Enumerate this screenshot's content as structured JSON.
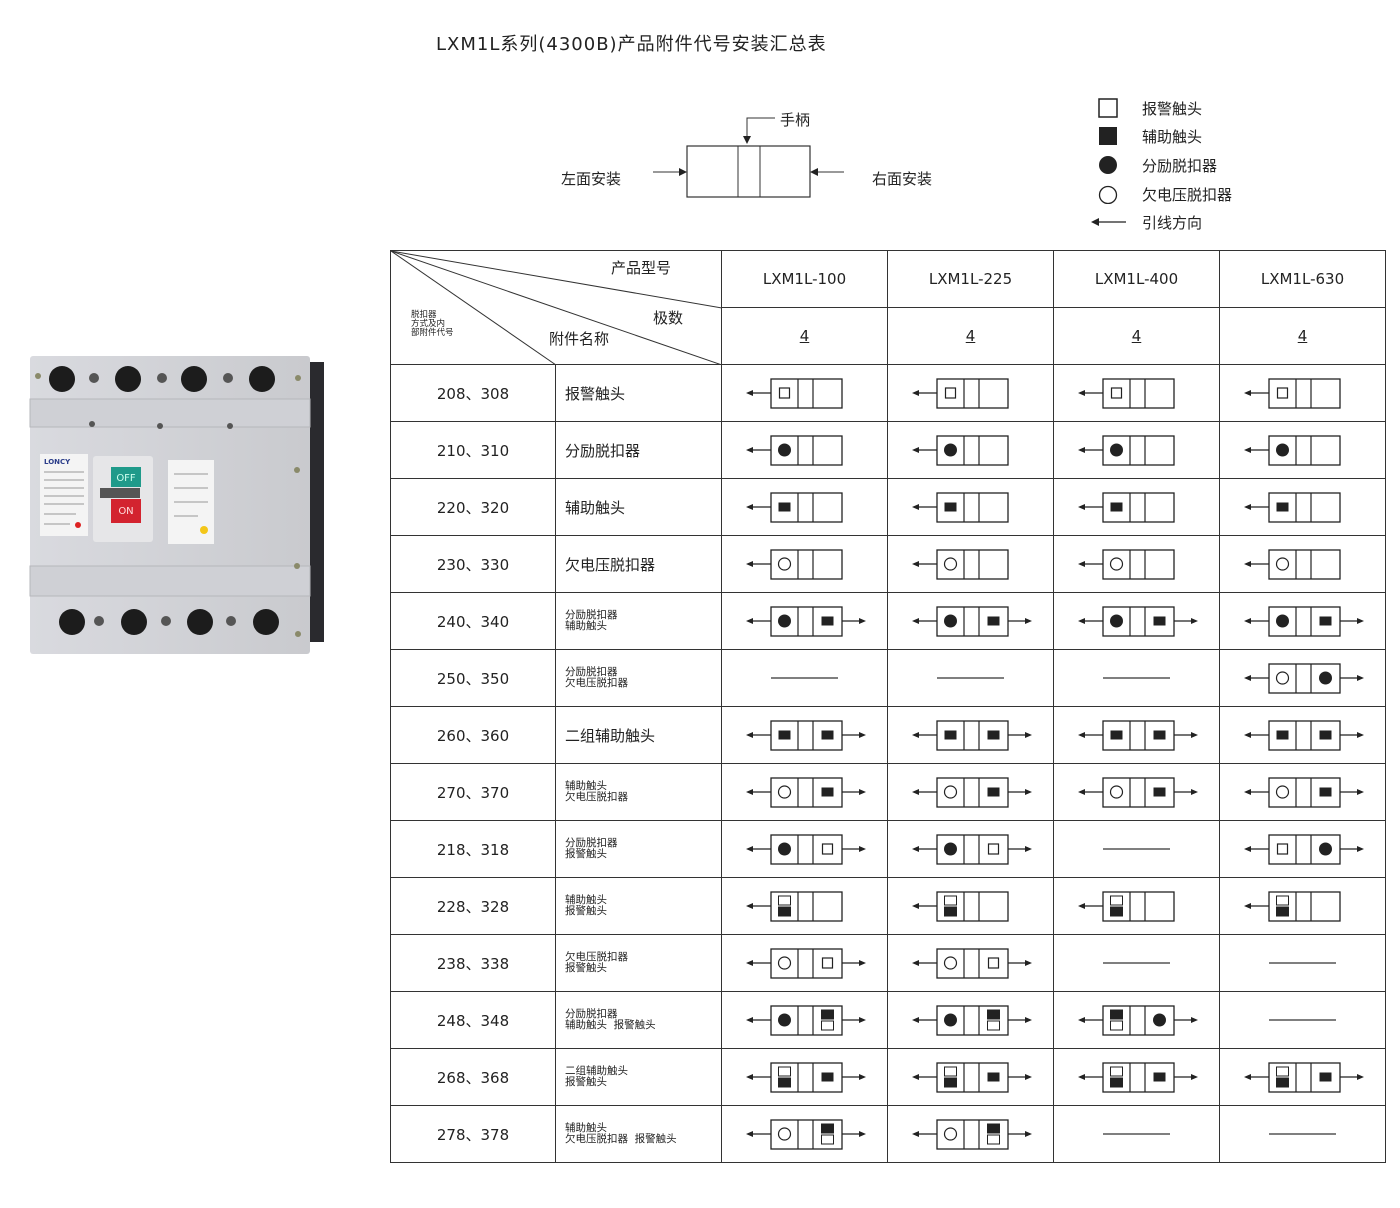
{
  "title": "LXM1L系列(4300B)产品附件代号安装汇总表",
  "install_diagram": {
    "handle": "手柄",
    "left": "左面安装",
    "right": "右面安装"
  },
  "legend": [
    {
      "symbol": "white-square",
      "label": "报警触头"
    },
    {
      "symbol": "black-square",
      "label": "辅助触头"
    },
    {
      "symbol": "black-circle",
      "label": "分励脱扣器"
    },
    {
      "symbol": "white-circle",
      "label": "欠电压脱扣器"
    },
    {
      "symbol": "arrow-left",
      "label": "引线方向"
    }
  ],
  "breaker_photo": {
    "brand": "LONCY",
    "off_label": "OFF",
    "on_label": "ON"
  },
  "table": {
    "header": {
      "product_model": "产品型号",
      "poles": "极数",
      "accessory_name": "附件名称",
      "code_label": "脱扣器\n方式及内\n部附件代号"
    },
    "models": [
      "LXM1L-100",
      "LXM1L-225",
      "LXM1L-400",
      "LXM1L-630"
    ],
    "pole_counts": [
      "4",
      "4",
      "4",
      "4"
    ],
    "rows": [
      {
        "code": "208、308",
        "name": [
          "报警触头"
        ],
        "cells": [
          {
            "l": "wsq",
            "r": ""
          },
          {
            "l": "wsq",
            "r": ""
          },
          {
            "l": "wsq",
            "r": ""
          },
          {
            "l": "wsq",
            "r": ""
          }
        ]
      },
      {
        "code": "210、310",
        "name": [
          "分励脱扣器"
        ],
        "cells": [
          {
            "l": "bc",
            "r": ""
          },
          {
            "l": "bc",
            "r": ""
          },
          {
            "l": "bc",
            "r": ""
          },
          {
            "l": "bc",
            "r": ""
          }
        ]
      },
      {
        "code": "220、320",
        "name": [
          "辅助触头"
        ],
        "cells": [
          {
            "l": "bsq",
            "r": ""
          },
          {
            "l": "bsq",
            "r": ""
          },
          {
            "l": "bsq",
            "r": ""
          },
          {
            "l": "bsq",
            "r": ""
          }
        ]
      },
      {
        "code": "230、330",
        "name": [
          "欠电压脱扣器"
        ],
        "cells": [
          {
            "l": "wc",
            "r": ""
          },
          {
            "l": "wc",
            "r": ""
          },
          {
            "l": "wc",
            "r": ""
          },
          {
            "l": "wc",
            "r": ""
          }
        ]
      },
      {
        "code": "240、340",
        "name": [
          "分励脱扣器",
          "辅助触头"
        ],
        "cells": [
          {
            "l": "bc",
            "r": "bsq"
          },
          {
            "l": "bc",
            "r": "bsq"
          },
          {
            "l": "bc",
            "r": "bsq"
          },
          {
            "l": "bc",
            "r": "bsq"
          }
        ]
      },
      {
        "code": "250、350",
        "name": [
          "分励脱扣器",
          "欠电压脱扣器"
        ],
        "cells": [
          null,
          null,
          null,
          {
            "l": "wc",
            "r": "bc"
          }
        ]
      },
      {
        "code": "260、360",
        "name": [
          "二组辅助触头"
        ],
        "cells": [
          {
            "l": "bsq",
            "r": "bsq"
          },
          {
            "l": "bsq",
            "r": "bsq"
          },
          {
            "l": "bsq",
            "r": "bsq"
          },
          {
            "l": "bsq",
            "r": "bsq"
          }
        ]
      },
      {
        "code": "270、370",
        "name": [
          "辅助触头",
          "欠电压脱扣器"
        ],
        "cells": [
          {
            "l": "wc",
            "r": "bsq"
          },
          {
            "l": "wc",
            "r": "bsq"
          },
          {
            "l": "wc",
            "r": "bsq"
          },
          {
            "l": "wc",
            "r": "bsq"
          }
        ]
      },
      {
        "code": "218、318",
        "name": [
          "分励脱扣器",
          "报警触头"
        ],
        "cells": [
          {
            "l": "bc",
            "r": "wsq"
          },
          {
            "l": "bc",
            "r": "wsq"
          },
          null,
          {
            "l": "wsq",
            "r": "bc"
          }
        ]
      },
      {
        "code": "228、328",
        "name": [
          "辅助触头",
          "报警触头"
        ],
        "cells": [
          {
            "l": "wb",
            "r": ""
          },
          {
            "l": "wb",
            "r": ""
          },
          {
            "l": "wb",
            "r": ""
          },
          {
            "l": "wb",
            "r": ""
          }
        ]
      },
      {
        "code": "238、338",
        "name": [
          "欠电压脱扣器",
          "报警触头"
        ],
        "cells": [
          {
            "l": "wc",
            "r": "wsq"
          },
          {
            "l": "wc",
            "r": "wsq"
          },
          null,
          null
        ]
      },
      {
        "code": "248、348",
        "name": [
          "分励脱扣器",
          "辅助触头  报警触头"
        ],
        "cells": [
          {
            "l": "bc",
            "r": "bw"
          },
          {
            "l": "bc",
            "r": "bw"
          },
          {
            "l": "bw",
            "r": "bc"
          },
          null
        ]
      },
      {
        "code": "268、368",
        "name": [
          "二组辅助触头",
          "报警触头"
        ],
        "cells": [
          {
            "l": "wb",
            "r": "bsq"
          },
          {
            "l": "wb",
            "r": "bsq"
          },
          {
            "l": "wb",
            "r": "bsq"
          },
          {
            "l": "wb",
            "r": "bsq"
          }
        ]
      },
      {
        "code": "278、378",
        "name": [
          "辅助触头",
          "欠电压脱扣器  报警触头"
        ],
        "cells": [
          {
            "l": "wc",
            "r": "bw"
          },
          {
            "l": "wc",
            "r": "bw"
          },
          null,
          null
        ]
      }
    ]
  }
}
